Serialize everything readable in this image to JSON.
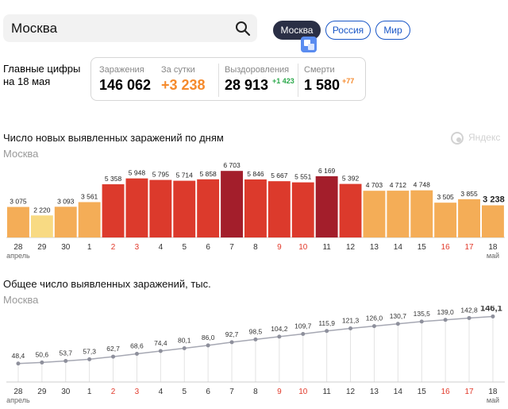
{
  "search": {
    "value": "Москва"
  },
  "regions": {
    "active": "Москва",
    "russia": "Россия",
    "world": "Мир"
  },
  "summary": {
    "title": "Главные цифры на 18 мая",
    "infections": {
      "label": "Заражения",
      "value": "146 062"
    },
    "daily": {
      "label": "За сутки",
      "value": "+3 238"
    },
    "recovered": {
      "label": "Выздоровления",
      "value": "28 913",
      "delta": "+1 423"
    },
    "deaths": {
      "label": "Смерти",
      "value": "1 580",
      "delta": "+77"
    }
  },
  "watermark": {
    "text": "Яндекс"
  },
  "colors": {
    "orange": "#f58a2c",
    "green": "#2aa84a",
    "darkred": "#a31e2b",
    "red": "#dc3a2c",
    "lightorange": "#f4ad57",
    "yellow": "#f8da83",
    "line": "#a6a8b3",
    "weekend": "#e23b2c"
  },
  "chart_data": [
    {
      "type": "bar",
      "title": "Число новых выявленных заражений по дням",
      "subtitle": "Москва",
      "categories": [
        "28",
        "29",
        "30",
        "1",
        "2",
        "3",
        "4",
        "5",
        "6",
        "7",
        "8",
        "9",
        "10",
        "11",
        "12",
        "13",
        "14",
        "15",
        "16",
        "17",
        "18"
      ],
      "month_labels": [
        {
          "index": 0,
          "text": "апрель"
        },
        {
          "index": 20,
          "text": "май"
        }
      ],
      "weekend_indices": [
        4,
        5,
        11,
        12,
        18,
        19
      ],
      "values": [
        3075,
        2220,
        3093,
        3561,
        5358,
        5948,
        5795,
        5714,
        5858,
        6703,
        5846,
        5667,
        5551,
        6169,
        5392,
        4703,
        4712,
        4748,
        3505,
        3855,
        3238
      ],
      "value_labels": [
        "3 075",
        "2 220",
        "3 093",
        "3 561",
        "5 358",
        "5 948",
        "5 795",
        "5 714",
        "5 858",
        "6 703",
        "5 846",
        "5 667",
        "5 551",
        "6 169",
        "5 392",
        "4 703",
        "4 712",
        "4 748",
        "3 505",
        "3 855",
        "3 238"
      ],
      "ylim": [
        0,
        7200
      ]
    },
    {
      "type": "line",
      "title": "Общее число выявленных заражений, тыс.",
      "subtitle": "Москва",
      "categories": [
        "28",
        "29",
        "30",
        "1",
        "2",
        "3",
        "4",
        "5",
        "6",
        "7",
        "8",
        "9",
        "10",
        "11",
        "12",
        "13",
        "14",
        "15",
        "16",
        "17",
        "18"
      ],
      "month_labels": [
        {
          "index": 0,
          "text": "апрель"
        },
        {
          "index": 20,
          "text": "май"
        }
      ],
      "weekend_indices": [
        4,
        5,
        11,
        12,
        18,
        19
      ],
      "values": [
        48.4,
        50.6,
        53.7,
        57.3,
        62.7,
        68.6,
        74.4,
        80.1,
        86.0,
        92.7,
        98.5,
        104.2,
        109.7,
        115.9,
        121.3,
        126.0,
        130.7,
        135.5,
        139.0,
        142.8,
        146.1
      ],
      "value_labels": [
        "48,4",
        "50,6",
        "53,7",
        "57,3",
        "62,7",
        "68,6",
        "74,4",
        "80,1",
        "86,0",
        "92,7",
        "98,5",
        "104,2",
        "109,7",
        "115,9",
        "121,3",
        "126,0",
        "130,7",
        "135,5",
        "139,0",
        "142,8",
        "146,1"
      ],
      "ylim": [
        0,
        160
      ]
    }
  ]
}
